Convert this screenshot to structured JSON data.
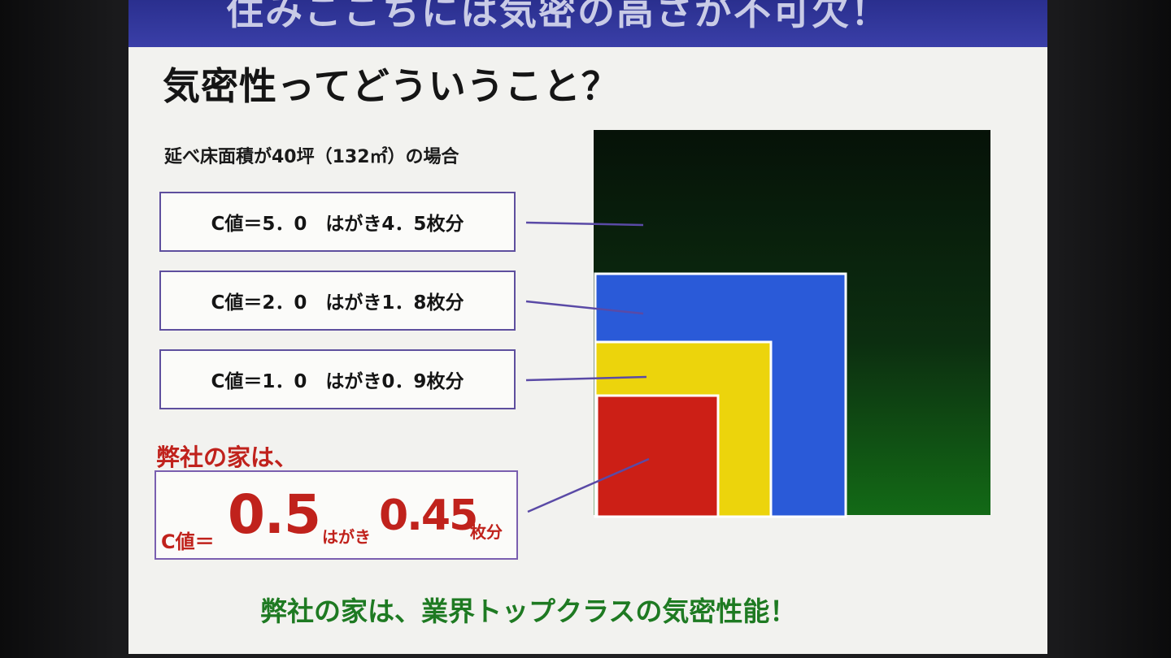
{
  "banner": {
    "title": "住みここちには気密の高さが不可欠！"
  },
  "heading": "気密性ってどういうこと？",
  "subtitle": "延べ床面積が40坪（132㎡）の場合",
  "items": [
    {
      "label": "C値＝5．0　はがき4．5枚分",
      "color": "#0a1e0c"
    },
    {
      "label": "C値＝2．0　はがき1．8枚分",
      "color": "#2a5ad8"
    },
    {
      "label": "C値＝1．0　はがき0．9枚分",
      "color": "#ecd40c"
    }
  ],
  "highlight": {
    "heading": "弊社の家は、",
    "c_label": "C値＝",
    "c_value": "0.5",
    "card_label": "はがき",
    "card_value": "0.45",
    "unit": "枚分",
    "color": "#cc1f16"
  },
  "footer": "弊社の家は、業界トップクラスの気密性能！"
}
